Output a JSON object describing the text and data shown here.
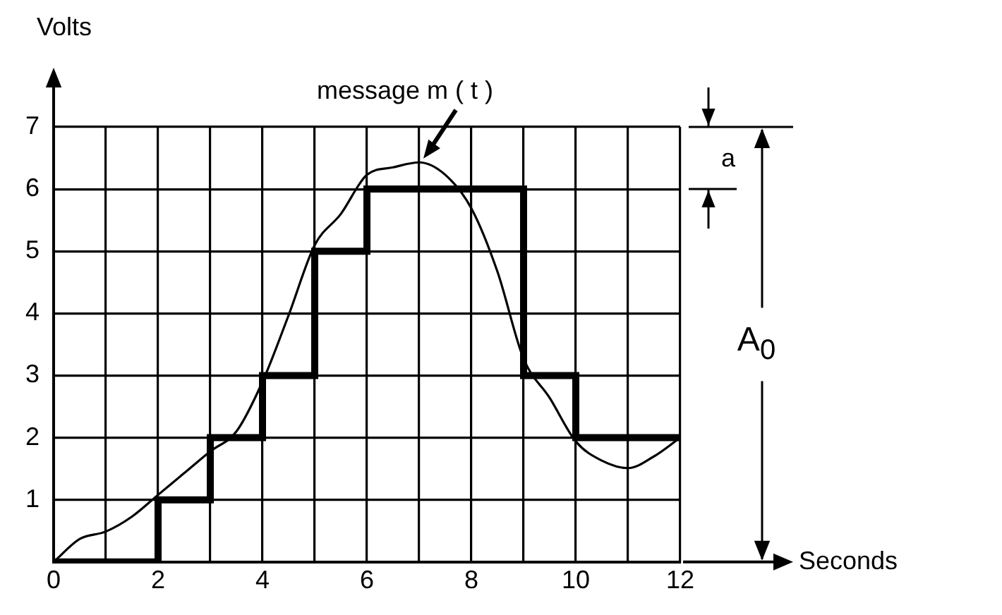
{
  "chart_data": {
    "type": "line",
    "xlabel": "Seconds",
    "ylabel": "Volts",
    "xlim": [
      0,
      12
    ],
    "ylim": [
      0,
      7
    ],
    "xticks": [
      0,
      {
        "value": 1,
        "label": null
      },
      2,
      {
        "value": 3,
        "label": null
      },
      4,
      {
        "value": 5,
        "label": null
      },
      6,
      {
        "value": 7,
        "label": null
      },
      8,
      {
        "value": 9,
        "label": null
      },
      10,
      {
        "value": 11,
        "label": null
      },
      12
    ],
    "yticks": [
      {
        "value": 0,
        "label": null
      },
      1,
      2,
      3,
      4,
      5,
      6,
      7
    ],
    "grid": true,
    "legend": false,
    "marker": "none",
    "series": [
      {
        "type": "step",
        "color": "#000000",
        "x": [
          0,
          1,
          2,
          3,
          4,
          5,
          6,
          7,
          8,
          9,
          10,
          11,
          12
        ],
        "values": [
          0,
          0,
          1,
          2,
          3,
          5,
          6,
          6,
          6,
          3,
          2,
          2,
          2
        ]
      },
      {
        "type": "line",
        "color": "#000000",
        "x": [
          0,
          0.5,
          1,
          1.5,
          2,
          2.5,
          3,
          3.5,
          4,
          4.5,
          5,
          5.5,
          6,
          6.5,
          7,
          7.5,
          8,
          8.5,
          9,
          9.5,
          10,
          10.5,
          11,
          11.5,
          12
        ],
        "values": [
          0,
          0.37,
          0.49,
          0.73,
          1.08,
          1.43,
          1.78,
          2.1,
          2.9,
          3.97,
          5.1,
          5.6,
          6.23,
          6.35,
          6.43,
          6.23,
          5.69,
          4.67,
          3.27,
          2.64,
          1.94,
          1.63,
          1.51,
          1.7,
          2.0
        ]
      }
    ],
    "annotations": [
      {
        "text": "message m ( t )",
        "x": 7,
        "y": 6.4
      },
      "a",
      "A$_{0}$"
    ]
  }
}
